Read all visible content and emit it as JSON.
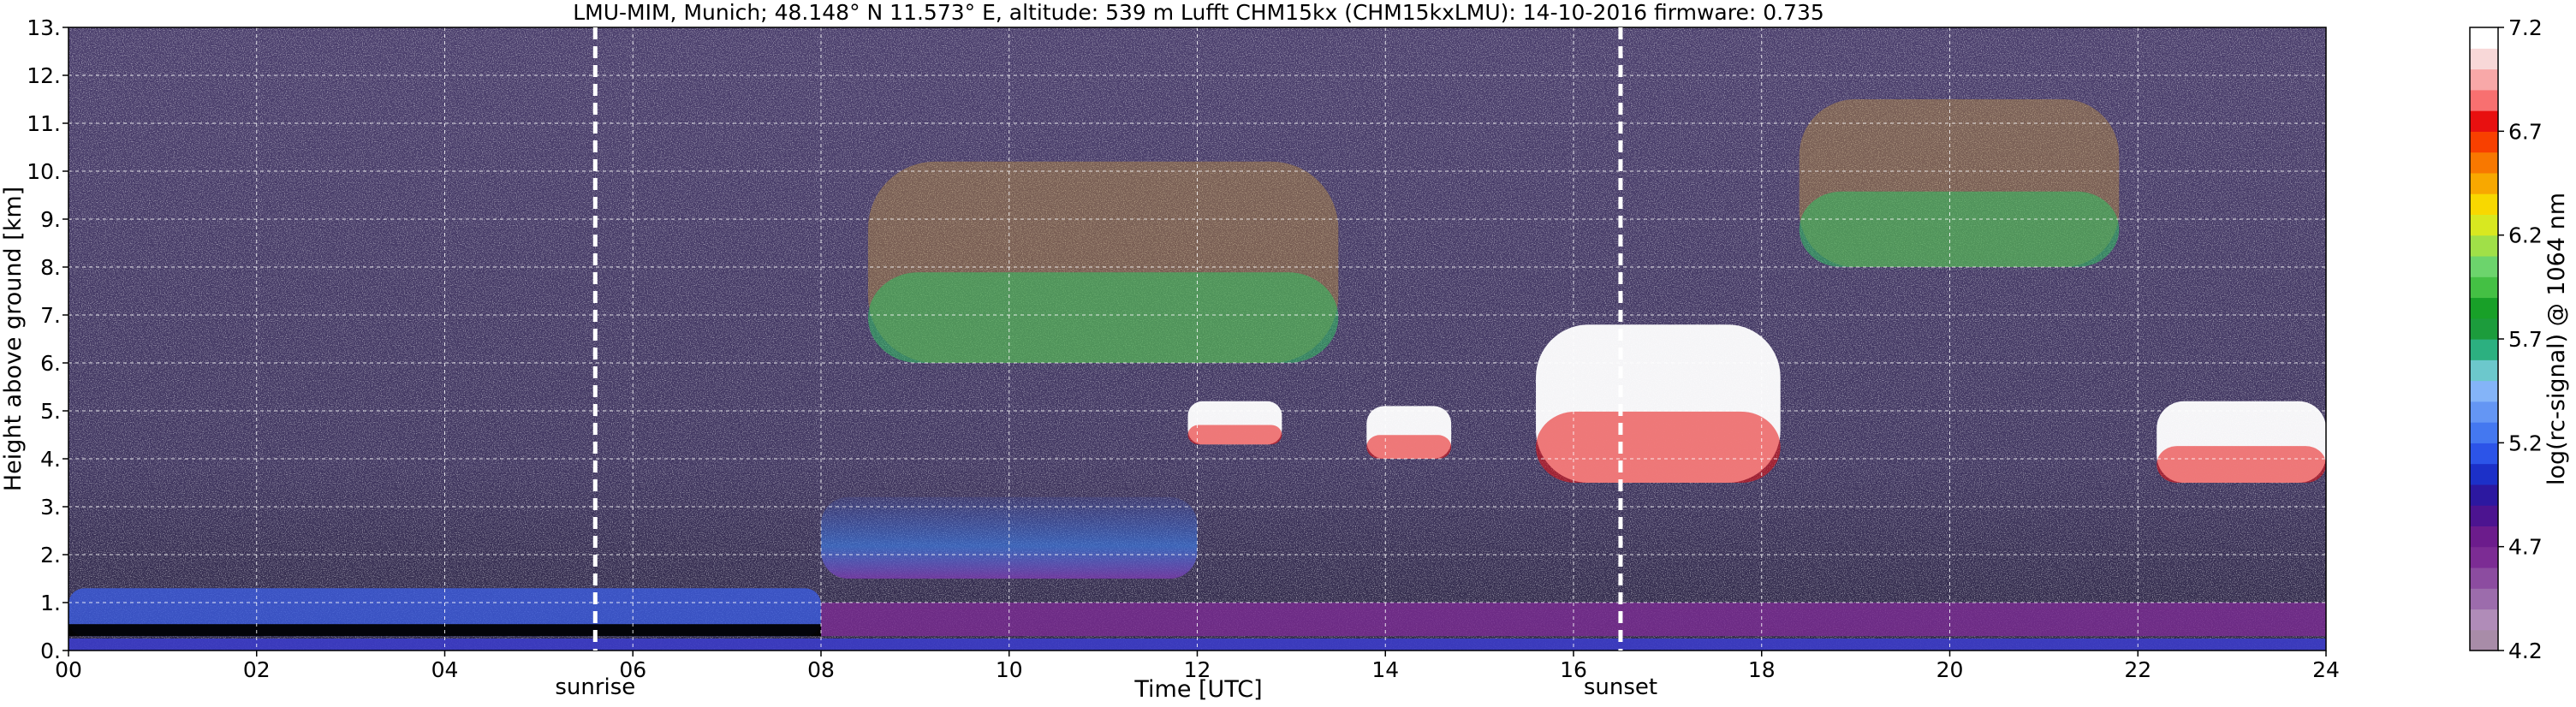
{
  "chart_data": {
    "type": "heatmap",
    "title": "LMU-MIM, Munich; 48.148° N 11.573° E, altitude: 539 m    Lufft CHM15kx (CHM15kxLMU): 14-10-2016    firmware: 0.735",
    "xlabel": "Time [UTC]",
    "ylabel": "Height above ground [km]",
    "xlim": [
      0,
      24
    ],
    "ylim": [
      0,
      13
    ],
    "x_ticks": [
      0,
      2,
      4,
      6,
      8,
      10,
      12,
      14,
      16,
      18,
      20,
      22,
      24
    ],
    "x_tick_labels": [
      "00",
      "02",
      "04",
      "06",
      "08",
      "10",
      "12",
      "14",
      "16",
      "18",
      "20",
      "22",
      "24"
    ],
    "y_ticks": [
      0,
      1,
      2,
      3,
      4,
      5,
      6,
      7,
      8,
      9,
      10,
      11,
      12,
      13
    ],
    "y_tick_labels": [
      "0.",
      "1.",
      "2.",
      "3.",
      "4.",
      "5.",
      "6.",
      "7.",
      "8.",
      "9.",
      "10.",
      "11.",
      "12.",
      "13."
    ],
    "grid": true,
    "colorbar": {
      "label": "log(rc-signal) @ 1064 nm",
      "range": [
        4.2,
        7.2
      ],
      "ticks": [
        4.2,
        4.7,
        5.2,
        5.7,
        6.2,
        6.7,
        7.2
      ],
      "tick_labels": [
        "4.2",
        "4.7",
        "5.2",
        "5.7",
        "6.2",
        "6.7",
        "7.2"
      ],
      "colors": [
        "#a88ca8",
        "#b08cb8",
        "#9c6cac",
        "#8c4ca0",
        "#7c2c94",
        "#6c1c8c",
        "#4c1490",
        "#2c18a0",
        "#1c30c8",
        "#2c54e8",
        "#4478f0",
        "#6496f4",
        "#84b4f8",
        "#6cc8cc",
        "#2cb080",
        "#1c9c3c",
        "#18a028",
        "#44c044",
        "#6cd46c",
        "#a0e048",
        "#d8e820",
        "#f8d800",
        "#f8a800",
        "#f87800",
        "#f84000",
        "#e81010",
        "#f87070",
        "#f8a8a8",
        "#f8d8d8",
        "#ffffff"
      ]
    },
    "annotations": [
      {
        "text": "sunrise",
        "x": 5.6
      },
      {
        "text": "sunset",
        "x": 16.5
      }
    ],
    "features": [
      {
        "kind": "boundary_layer",
        "x": [
          0,
          8
        ],
        "y": [
          0.3,
          1.3
        ]
      },
      {
        "kind": "aerosol_layer",
        "x": [
          8,
          12
        ],
        "y": [
          1.5,
          3.2
        ]
      },
      {
        "kind": "cloud",
        "x": [
          11.9,
          12.9
        ],
        "y": [
          4.3,
          5.2
        ]
      },
      {
        "kind": "cloud",
        "x": [
          13.8,
          14.7
        ],
        "y": [
          4.0,
          5.1
        ]
      },
      {
        "kind": "cloud",
        "x": [
          15.6,
          18.2
        ],
        "y": [
          3.5,
          6.8
        ]
      },
      {
        "kind": "cloud",
        "x": [
          22.2,
          24
        ],
        "y": [
          3.5,
          5.2
        ]
      },
      {
        "kind": "cirrus",
        "x": [
          8.5,
          13.5
        ],
        "y": [
          6.0,
          10.2
        ]
      },
      {
        "kind": "cirrus",
        "x": [
          18.4,
          21.8
        ],
        "y": [
          8.0,
          11.5
        ]
      }
    ]
  }
}
